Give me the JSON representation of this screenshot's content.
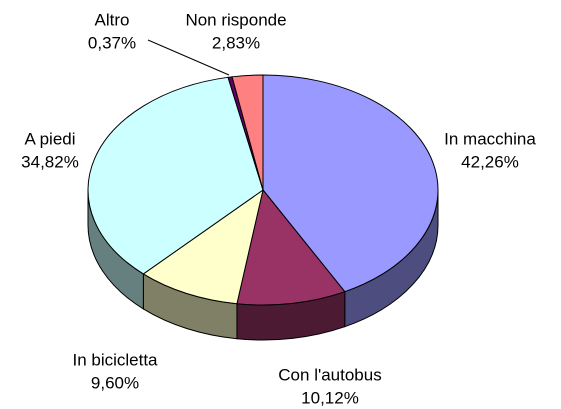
{
  "chart_data": {
    "type": "pie3d",
    "categories": [
      "In macchina",
      "Con l'autobus",
      "In bicicletta",
      "A piedi",
      "Altro",
      "Non risponde"
    ],
    "values": [
      42.26,
      10.12,
      9.6,
      34.82,
      0.37,
      2.83
    ],
    "value_labels": [
      "42,26%",
      "10,12%",
      "9,60%",
      "34,82%",
      "0,37%",
      "2,83%"
    ],
    "colors": [
      "#9999ff",
      "#993366",
      "#ffffcc",
      "#ccffff",
      "#660066",
      "#ff8080"
    ]
  }
}
